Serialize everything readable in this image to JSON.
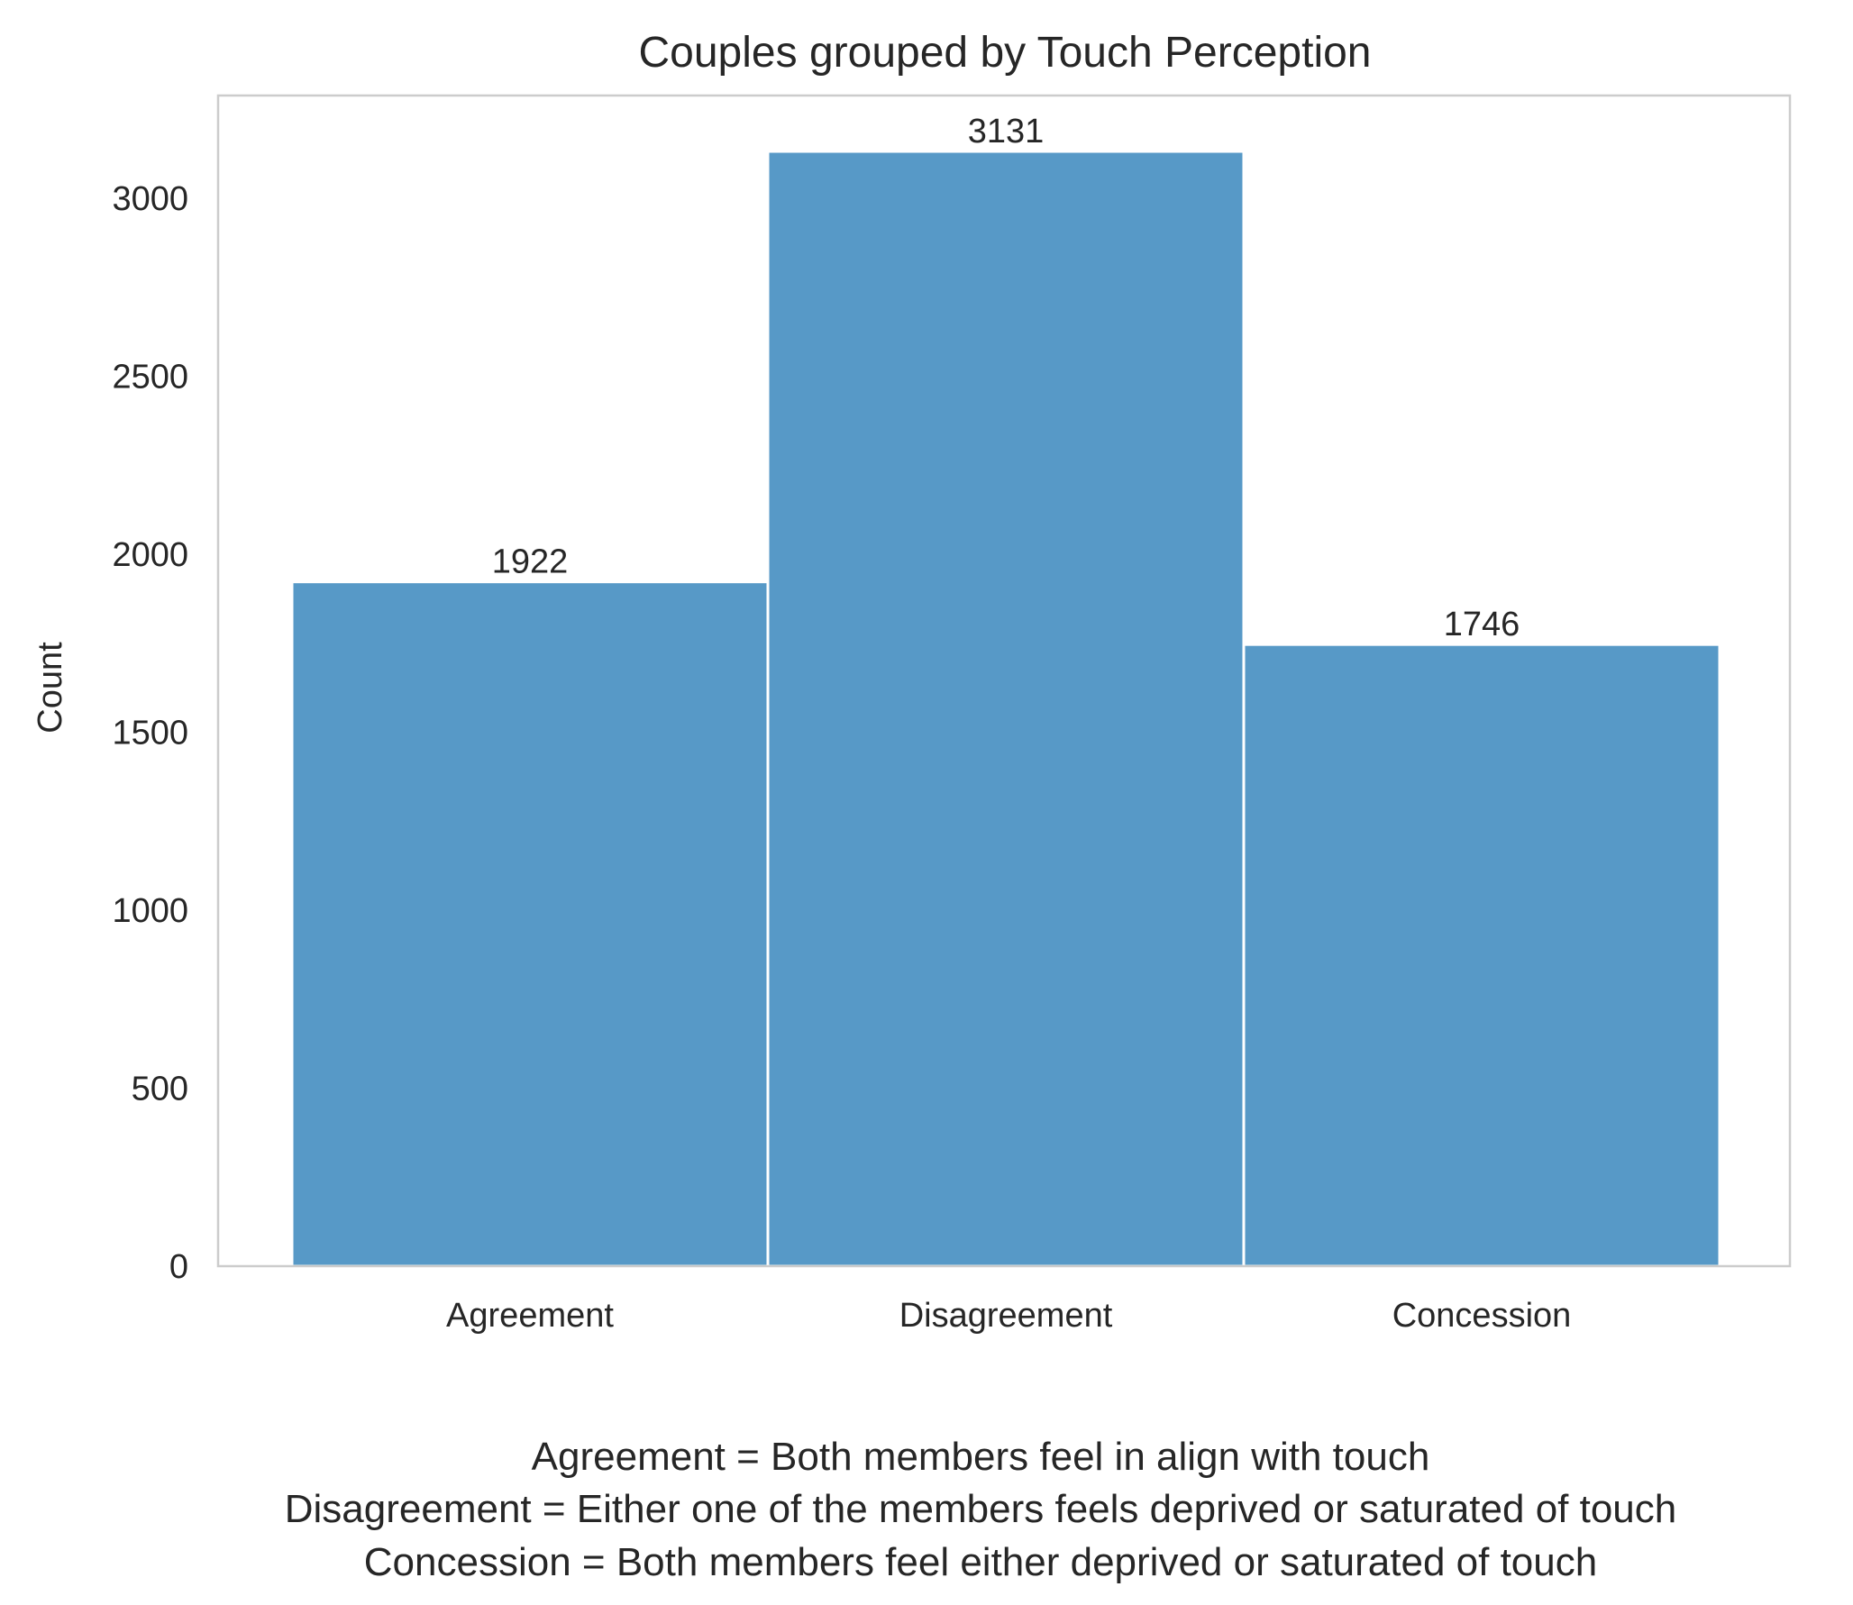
{
  "chart_data": {
    "type": "bar",
    "title": "Couples grouped by Touch Perception",
    "xlabel": "",
    "ylabel": "Count",
    "categories": [
      "Agreement",
      "Disagreement",
      "Concession"
    ],
    "values": [
      1922,
      3131,
      1746
    ],
    "value_labels": [
      "1922",
      "3131",
      "1746"
    ],
    "yticks": [
      0,
      500,
      1000,
      1500,
      2000,
      2500,
      3000
    ],
    "ytick_labels": [
      "0",
      "500",
      "1000",
      "1500",
      "2000",
      "2500",
      "3000"
    ],
    "ylim": [
      0,
      3288
    ],
    "grid": false,
    "legend": "none",
    "bar_color": "#5799c7",
    "caption_lines": [
      "Agreement = Both members feel in align with touch",
      "Disagreement = Either one of the members feels deprived or saturated of touch",
      "Concession = Both members feel either deprived or saturated of touch"
    ]
  }
}
